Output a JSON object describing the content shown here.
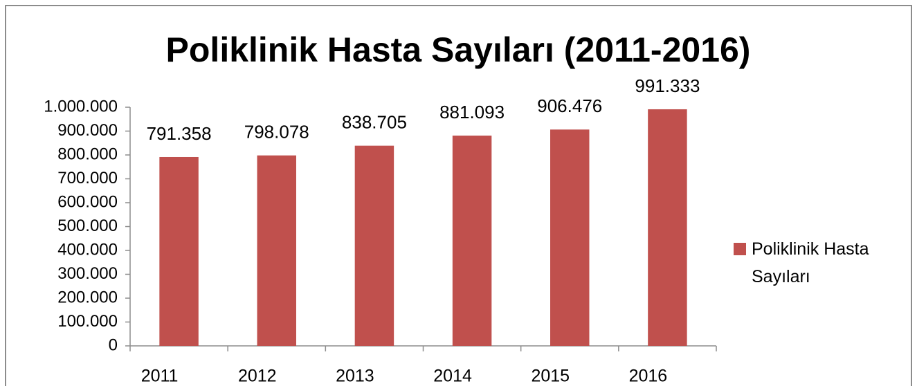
{
  "chart_data": {
    "type": "bar",
    "title": "Poliklinik Hasta Sayıları (2011-2016)",
    "categories": [
      "2011",
      "2012",
      "2013",
      "2014",
      "2015",
      "2016"
    ],
    "series": [
      {
        "name": "Poliklinik Hasta Sayıları",
        "color": "#c0504d",
        "values": [
          791358,
          798078,
          838705,
          881093,
          906476,
          991333
        ],
        "value_labels": [
          "791.358",
          "798.078",
          "838.705",
          "881.093",
          "906.476",
          "991.333"
        ]
      }
    ],
    "ylim": [
      0,
      1000000
    ],
    "yticks": [
      0,
      {
        "value": 100000,
        "label": "100.000"
      },
      {
        "value": 200000,
        "label": "200.000"
      },
      {
        "value": 300000,
        "label": "300.000"
      },
      {
        "value": 400000,
        "label": "400.000"
      },
      {
        "value": 500000,
        "label": "500.000"
      },
      {
        "value": 600000,
        "label": "600.000"
      },
      {
        "value": 700000,
        "label": "700.000"
      },
      {
        "value": 800000,
        "label": "800.000"
      },
      {
        "value": 900000,
        "label": "900.000"
      },
      {
        "value": 1000000,
        "label": "1.000.000"
      }
    ],
    "legend": "right"
  }
}
